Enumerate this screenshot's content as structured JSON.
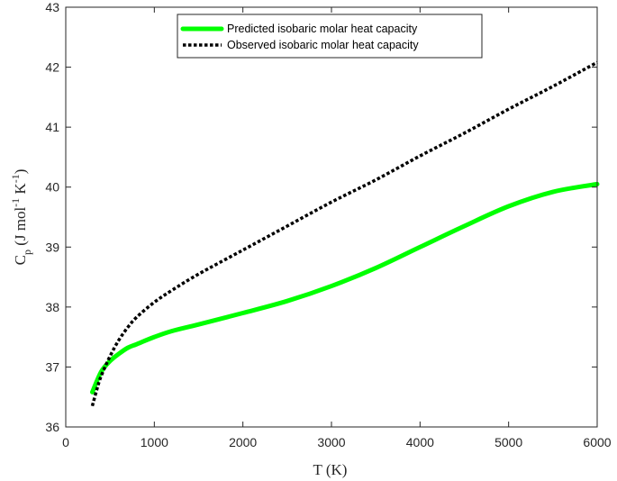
{
  "chart_data": {
    "type": "line",
    "xlabel": "T (K)",
    "ylabel_parts": {
      "base": "C",
      "sub": "p",
      "units_pre": " (J mol",
      "exp1": "-1",
      "units_mid": " K",
      "exp2": "-1",
      "units_post": ")"
    },
    "xlim": [
      0,
      6000
    ],
    "ylim": [
      36,
      43
    ],
    "xticks": [
      0,
      1000,
      2000,
      3000,
      4000,
      5000,
      6000
    ],
    "yticks": [
      36,
      37,
      38,
      39,
      40,
      41,
      42,
      43
    ],
    "grid": false,
    "legend_position": "top-center",
    "series": [
      {
        "name": "Predicted isobaric molar heat capacity",
        "color": "#00ff00",
        "style": "solid",
        "x": [
          300,
          400,
          500,
          600,
          700,
          800,
          1000,
          1200,
          1500,
          2000,
          2500,
          3000,
          3500,
          4000,
          4500,
          5000,
          5500,
          6000
        ],
        "y": [
          36.58,
          36.92,
          37.1,
          37.22,
          37.32,
          37.38,
          37.5,
          37.6,
          37.71,
          37.9,
          38.1,
          38.35,
          38.65,
          39.0,
          39.35,
          39.68,
          39.92,
          40.05
        ]
      },
      {
        "name": "Observed isobaric molar heat capacity",
        "color": "#000000",
        "style": "dotted",
        "x": [
          300,
          350,
          400,
          500,
          600,
          700,
          800,
          1000,
          1200,
          1500,
          2000,
          2500,
          3000,
          3500,
          4000,
          4500,
          5000,
          5500,
          6000
        ],
        "y": [
          36.35,
          36.62,
          36.85,
          37.18,
          37.45,
          37.66,
          37.83,
          38.08,
          38.28,
          38.55,
          38.95,
          39.35,
          39.75,
          40.12,
          40.52,
          40.9,
          41.3,
          41.68,
          42.08
        ]
      }
    ]
  }
}
